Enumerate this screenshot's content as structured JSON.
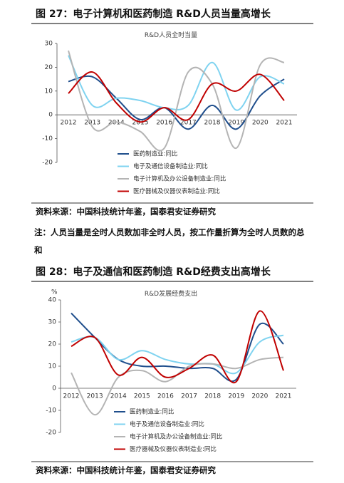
{
  "chart_data": [
    {
      "type": "line",
      "title": "图 27：电子计算机和医药制造 R&D人员当量高增长",
      "subtitle": "R&D人员全时当量",
      "categories": [
        "2012",
        "2013",
        "2014",
        "2015",
        "2016",
        "2017",
        "2018",
        "2019",
        "2020",
        "2021"
      ],
      "ylim": [
        -20,
        30
      ],
      "yticks": [
        -20,
        -10,
        0,
        10,
        20,
        30
      ],
      "series": [
        {
          "name": "医药制造业:同比",
          "color": "#1f4e8c",
          "values": [
            14,
            16,
            7,
            -2,
            3,
            -6,
            4,
            -6,
            8,
            15
          ]
        },
        {
          "name": "电子及通信设备制造业:同比",
          "color": "#7fd3f0",
          "values": [
            25,
            4,
            7,
            6,
            3,
            4,
            22,
            2,
            16,
            13
          ]
        },
        {
          "name": "电子计算机及办公设备制造业:同比",
          "color": "#b4b4b4",
          "values": [
            27,
            -5,
            -3,
            -7,
            -14,
            18,
            13,
            -14,
            21,
            22
          ]
        },
        {
          "name": "医疗器械及仪器仪表制造业:同比",
          "color": "#c00000",
          "values": [
            9,
            18,
            5,
            -3,
            3,
            -2,
            13,
            10,
            17,
            6
          ]
        }
      ],
      "source": "资料来源：中国科技统计年鉴，国泰君安证券研究",
      "note": "注：人员当量是全时人员数加非全时人员，按工作量折算为全时人员数的总和"
    },
    {
      "type": "line",
      "title": "图 28：电子及通信和医药制造 R&D经费支出高增长",
      "subtitle": "R&D发展经费支出",
      "unit": "%",
      "categories": [
        "2012",
        "2013",
        "2014",
        "2015",
        "2016",
        "2017",
        "2018",
        "2019",
        "2020",
        "2021"
      ],
      "ylim": [
        -20,
        40
      ],
      "yticks": [
        -20,
        -10,
        0,
        10,
        20,
        30,
        40
      ],
      "series": [
        {
          "name": "医药制造业:同比",
          "color": "#1f4e8c",
          "values": [
            34,
            23,
            13,
            10,
            10,
            9,
            9,
            4,
            29,
            20
          ]
        },
        {
          "name": "电子及通信设备制造业:同比",
          "color": "#7fd3f0",
          "values": [
            21,
            23,
            13,
            17,
            13,
            11,
            11,
            7,
            21,
            24
          ]
        },
        {
          "name": "电子计算机及办公设备制造业:同比",
          "color": "#b4b4b4",
          "values": [
            7,
            -12,
            5,
            8,
            3,
            10,
            11,
            9,
            13,
            14
          ]
        },
        {
          "name": "医疗器械及仪器仪表制造业:同比",
          "color": "#c00000",
          "values": [
            19,
            23,
            6,
            14,
            5,
            9,
            15,
            3,
            35,
            8
          ]
        }
      ],
      "source": "资料来源：中国科技统计年鉴，国泰君安证券研究"
    }
  ]
}
